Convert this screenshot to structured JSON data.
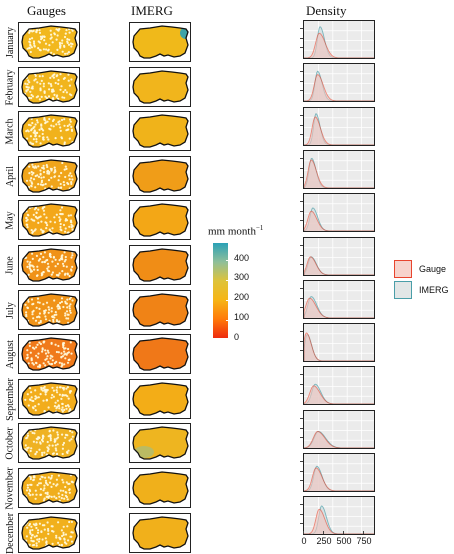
{
  "panel_titles": {
    "gauges": "Gauges",
    "imerg": "IMERG",
    "density": "Density"
  },
  "months": [
    "January",
    "February",
    "March",
    "April",
    "May",
    "June",
    "July",
    "August",
    "September",
    "October",
    "November",
    "December"
  ],
  "colorbar": {
    "title": "mm month",
    "title_sup": "−1",
    "ticks": [
      "400",
      "300",
      "200",
      "100",
      "0"
    ],
    "range": [
      0,
      450
    ],
    "colors": [
      "#ee2b0e",
      "#ff7a0a",
      "#f6b515",
      "#dec33a",
      "#8fbf9a",
      "#2aa1b7"
    ]
  },
  "legend": {
    "gauge_label": "Gauge",
    "imerg_label": "IMERG",
    "gauge_color": "#e8452e",
    "imerg_color": "#4a9ea8"
  },
  "imerg_colors": [
    "#f0b91a",
    "#f1b51c",
    "#f0b31a",
    "#f09d18",
    "#f3a716",
    "#f08d16",
    "#f08316",
    "#f07818",
    "#f3ad17",
    "#eeb520",
    "#f0b01b",
    "#f1b01b"
  ],
  "gauge_colors": [
    "#f2b81e",
    "#f1b51d",
    "#f1b21c",
    "#f0a51b",
    "#f3a71a",
    "#f09218",
    "#f09317",
    "#f07a1a",
    "#f2ad1c",
    "#efb222",
    "#f0ae1c",
    "#f1b01c"
  ],
  "chart_data": {
    "type": "area",
    "xlabel": "",
    "ylabel": "",
    "xlim": [
      0,
      900
    ],
    "x_ticks": [
      "0",
      "250",
      "500",
      "750"
    ],
    "x_tick_values": [
      0,
      250,
      500,
      750
    ],
    "series_names": [
      "Gauge",
      "IMERG"
    ],
    "panels": [
      {
        "month": "January",
        "gauge": {
          "peak": 190,
          "width": 75,
          "height": 0.75
        },
        "imerg": {
          "peak": 200,
          "width": 55,
          "height": 0.95
        }
      },
      {
        "month": "February",
        "gauge": {
          "peak": 170,
          "width": 70,
          "height": 0.8
        },
        "imerg": {
          "peak": 170,
          "width": 55,
          "height": 0.9
        }
      },
      {
        "month": "March",
        "gauge": {
          "peak": 140,
          "width": 65,
          "height": 0.85
        },
        "imerg": {
          "peak": 150,
          "width": 50,
          "height": 0.95
        }
      },
      {
        "month": "April",
        "gauge": {
          "peak": 90,
          "width": 65,
          "height": 0.85
        },
        "imerg": {
          "peak": 95,
          "width": 55,
          "height": 0.9
        }
      },
      {
        "month": "May",
        "gauge": {
          "peak": 90,
          "width": 70,
          "height": 0.6
        },
        "imerg": {
          "peak": 110,
          "width": 60,
          "height": 0.7
        }
      },
      {
        "month": "June",
        "gauge": {
          "peak": 80,
          "width": 70,
          "height": 0.55
        },
        "imerg": {
          "peak": 90,
          "width": 65,
          "height": 0.55
        }
      },
      {
        "month": "July",
        "gauge": {
          "peak": 70,
          "width": 80,
          "height": 0.6
        },
        "imerg": {
          "peak": 90,
          "width": 70,
          "height": 0.65
        }
      },
      {
        "month": "August",
        "gauge": {
          "peak": 30,
          "width": 60,
          "height": 0.85
        },
        "imerg": {
          "peak": 40,
          "width": 55,
          "height": 0.8
        }
      },
      {
        "month": "September",
        "gauge": {
          "peak": 120,
          "width": 80,
          "height": 0.55
        },
        "imerg": {
          "peak": 140,
          "width": 70,
          "height": 0.6
        }
      },
      {
        "month": "October",
        "gauge": {
          "peak": 170,
          "width": 90,
          "height": 0.5
        },
        "imerg": {
          "peak": 180,
          "width": 90,
          "height": 0.5
        }
      },
      {
        "month": "November",
        "gauge": {
          "peak": 150,
          "width": 75,
          "height": 0.7
        },
        "imerg": {
          "peak": 160,
          "width": 65,
          "height": 0.75
        }
      },
      {
        "month": "December",
        "gauge": {
          "peak": 190,
          "width": 70,
          "height": 0.75
        },
        "imerg": {
          "peak": 220,
          "width": 60,
          "height": 0.85
        }
      }
    ]
  }
}
